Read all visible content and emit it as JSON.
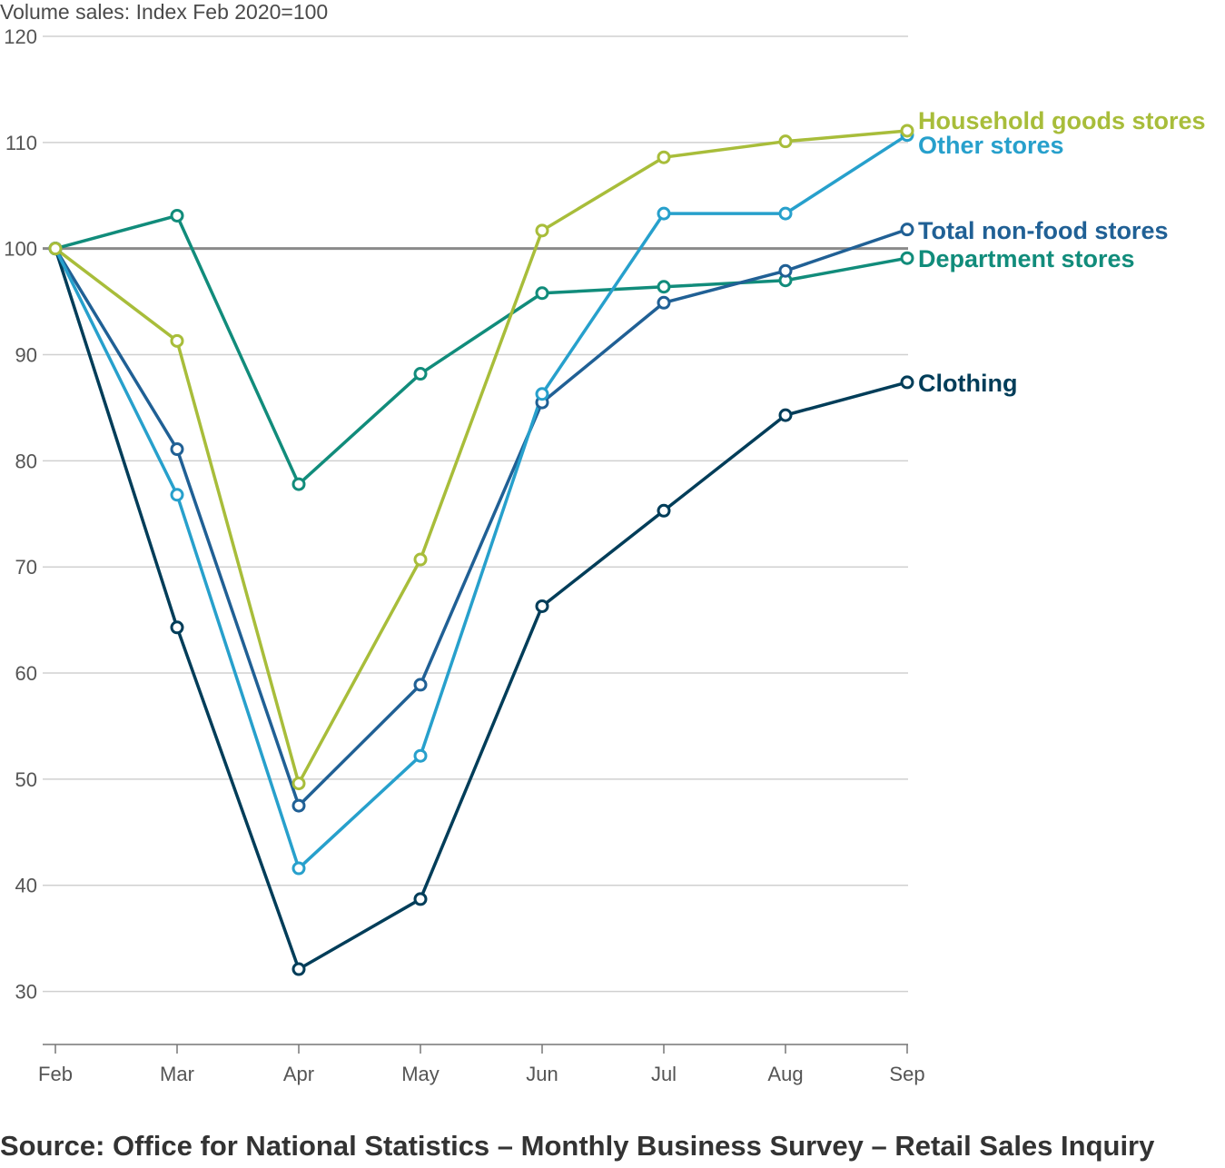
{
  "chart_data": {
    "type": "line",
    "ylabel": "Volume sales: Index Feb 2020=100",
    "source": "Source: Office for National Statistics – Monthly Business Survey – Retail Sales Inquiry",
    "categories": [
      "Feb",
      "Mar",
      "Apr",
      "May",
      "Jun",
      "Jul",
      "Aug",
      "Sep"
    ],
    "ylim": [
      25,
      120
    ],
    "yticks": [
      30,
      40,
      50,
      60,
      70,
      80,
      90,
      100,
      110,
      120
    ],
    "reference_line": 100,
    "grid": true,
    "series": [
      {
        "name": "Clothing",
        "color": "#003d59",
        "values": [
          100,
          64.3,
          32.1,
          38.7,
          66.3,
          75.3,
          84.3,
          87.4
        ]
      },
      {
        "name": "Department stores",
        "color": "#118c7b",
        "values": [
          100,
          103.1,
          77.8,
          88.2,
          95.8,
          96.4,
          97.0,
          99.1
        ]
      },
      {
        "name": "Total non-food stores",
        "color": "#206095",
        "values": [
          100,
          81.1,
          47.5,
          58.9,
          85.5,
          94.9,
          97.9,
          101.8
        ]
      },
      {
        "name": "Other stores",
        "color": "#27a0cc",
        "values": [
          100,
          76.8,
          41.6,
          52.2,
          86.3,
          103.3,
          103.3,
          110.7
        ]
      },
      {
        "name": "Household goods stores",
        "color": "#a8bd3a",
        "values": [
          100,
          91.3,
          49.6,
          70.7,
          101.7,
          108.6,
          110.1,
          111.1
        ]
      }
    ]
  }
}
